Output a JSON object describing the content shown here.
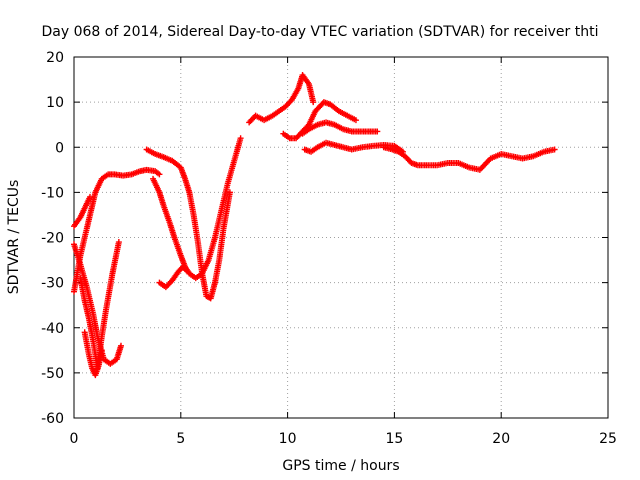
{
  "chart_data": {
    "type": "scatter",
    "title": "Day 068 of 2014, Sidereal Day-to-day VTEC variation (SDTVAR) for receiver thti",
    "xlabel": "GPS time / hours",
    "ylabel": "SDTVAR / TECUs",
    "xlim": [
      0,
      25
    ],
    "ylim": [
      -60,
      20
    ],
    "xticks": [
      "0",
      "5",
      "10",
      "15",
      "20",
      "25"
    ],
    "yticks": [
      "20",
      "10",
      "0",
      "-10",
      "-20",
      "-30",
      "-40",
      "-50",
      "-60"
    ],
    "grid": true,
    "marker": "plus",
    "color": "#ff0000",
    "series": [
      {
        "x": [
          0.0,
          0.15,
          0.3,
          0.45,
          0.6,
          0.75
        ],
        "y": [
          -17.5,
          -16.5,
          -15.5,
          -14,
          -12.5,
          -11
        ]
      },
      {
        "x": [
          0.0,
          0.3,
          0.6,
          0.8,
          1.0,
          1.3,
          1.6,
          1.9,
          2.3,
          2.7,
          3.1,
          3.4,
          3.8,
          4.0
        ],
        "y": [
          -32,
          -24,
          -18,
          -14,
          -10,
          -7,
          -6,
          -6,
          -6.3,
          -6,
          -5.3,
          -5,
          -5.3,
          -6
        ]
      },
      {
        "x": [
          3.7,
          4.0,
          4.2,
          4.5,
          4.7,
          5.0,
          5.2,
          5.4,
          5.7,
          6.0,
          6.3,
          6.6,
          6.9,
          7.2,
          7.5,
          7.8
        ],
        "y": [
          -7,
          -10,
          -13,
          -17,
          -20,
          -24,
          -26.5,
          -28,
          -29,
          -28,
          -25,
          -20,
          -14,
          -8,
          -3,
          2
        ]
      },
      {
        "x": [
          0.0,
          0.3,
          0.6,
          0.9,
          1.1,
          1.4,
          1.7,
          2.0,
          2.2
        ],
        "y": [
          -21.5,
          -26,
          -31,
          -37,
          -42,
          -47,
          -48,
          -47,
          -44
        ]
      },
      {
        "x": [
          0.3,
          0.5,
          0.7,
          0.9,
          1.1,
          1.3,
          1.5,
          1.8,
          2.1
        ],
        "y": [
          -29,
          -34,
          -38,
          -43,
          -49,
          -42,
          -36,
          -28,
          -21
        ]
      },
      {
        "x": [
          0.5,
          0.7,
          0.85,
          1.0,
          1.15,
          1.3
        ],
        "y": [
          -41,
          -46,
          -49,
          -50.5,
          -48.5,
          -45
        ]
      },
      {
        "x": [
          4.0,
          4.3,
          4.6,
          4.9,
          5.1,
          5.3
        ],
        "y": [
          -30,
          -31,
          -29.5,
          -27.5,
          -26.5,
          -27.5
        ]
      },
      {
        "x": [
          3.4,
          3.8,
          4.2,
          4.6,
          5.0,
          5.2,
          5.4,
          5.6,
          5.8,
          6.0,
          6.2,
          6.4,
          6.6,
          6.8,
          7.0,
          7.3
        ],
        "y": [
          -0.5,
          -1.5,
          -2.2,
          -3,
          -4.5,
          -7,
          -10,
          -15,
          -21,
          -28,
          -33,
          -33.5,
          -30,
          -25,
          -18,
          -10
        ]
      },
      {
        "x": [
          8.2,
          8.5,
          8.9,
          9.3,
          9.6,
          9.9,
          10.2,
          10.5,
          10.7,
          11.0,
          11.2
        ],
        "y": [
          5.5,
          7,
          6,
          7,
          8,
          9,
          10.5,
          13,
          16,
          14,
          10
        ]
      },
      {
        "x": [
          9.8,
          10.1,
          10.4,
          10.7,
          11.0,
          11.3,
          11.7,
          12.0,
          12.4,
          12.8,
          13.2
        ],
        "y": [
          3,
          2,
          2,
          3.5,
          5,
          8,
          10,
          9.5,
          8,
          7,
          6
        ]
      },
      {
        "x": [
          10.7,
          11.0,
          11.4,
          11.8,
          12.2,
          12.6,
          13.0,
          13.4,
          13.8,
          14.2
        ],
        "y": [
          3,
          4,
          5,
          5.5,
          5,
          4,
          3.5,
          3.5,
          3.5,
          3.5
        ]
      },
      {
        "x": [
          10.8,
          11.1,
          11.4,
          11.8,
          12.2,
          12.6,
          13.0,
          13.5,
          14.0,
          14.5,
          15.0,
          15.4
        ],
        "y": [
          -0.5,
          -1,
          0,
          1,
          0.5,
          0,
          -0.5,
          0,
          0.3,
          0.5,
          0.3,
          -1
        ]
      },
      {
        "x": [
          14.5,
          14.9,
          15.2,
          15.5,
          15.8,
          16.1,
          16.5,
          17.0,
          17.5,
          18.0,
          18.5,
          19.0,
          19.5,
          20.0,
          20.5,
          21.0,
          21.5,
          22.0,
          22.5
        ],
        "y": [
          0,
          -0.5,
          -1,
          -2,
          -3.5,
          -4,
          -4,
          -4,
          -3.5,
          -3.5,
          -4.5,
          -5,
          -2.5,
          -1.5,
          -2,
          -2.5,
          -2,
          -1,
          -0.5
        ]
      }
    ]
  }
}
